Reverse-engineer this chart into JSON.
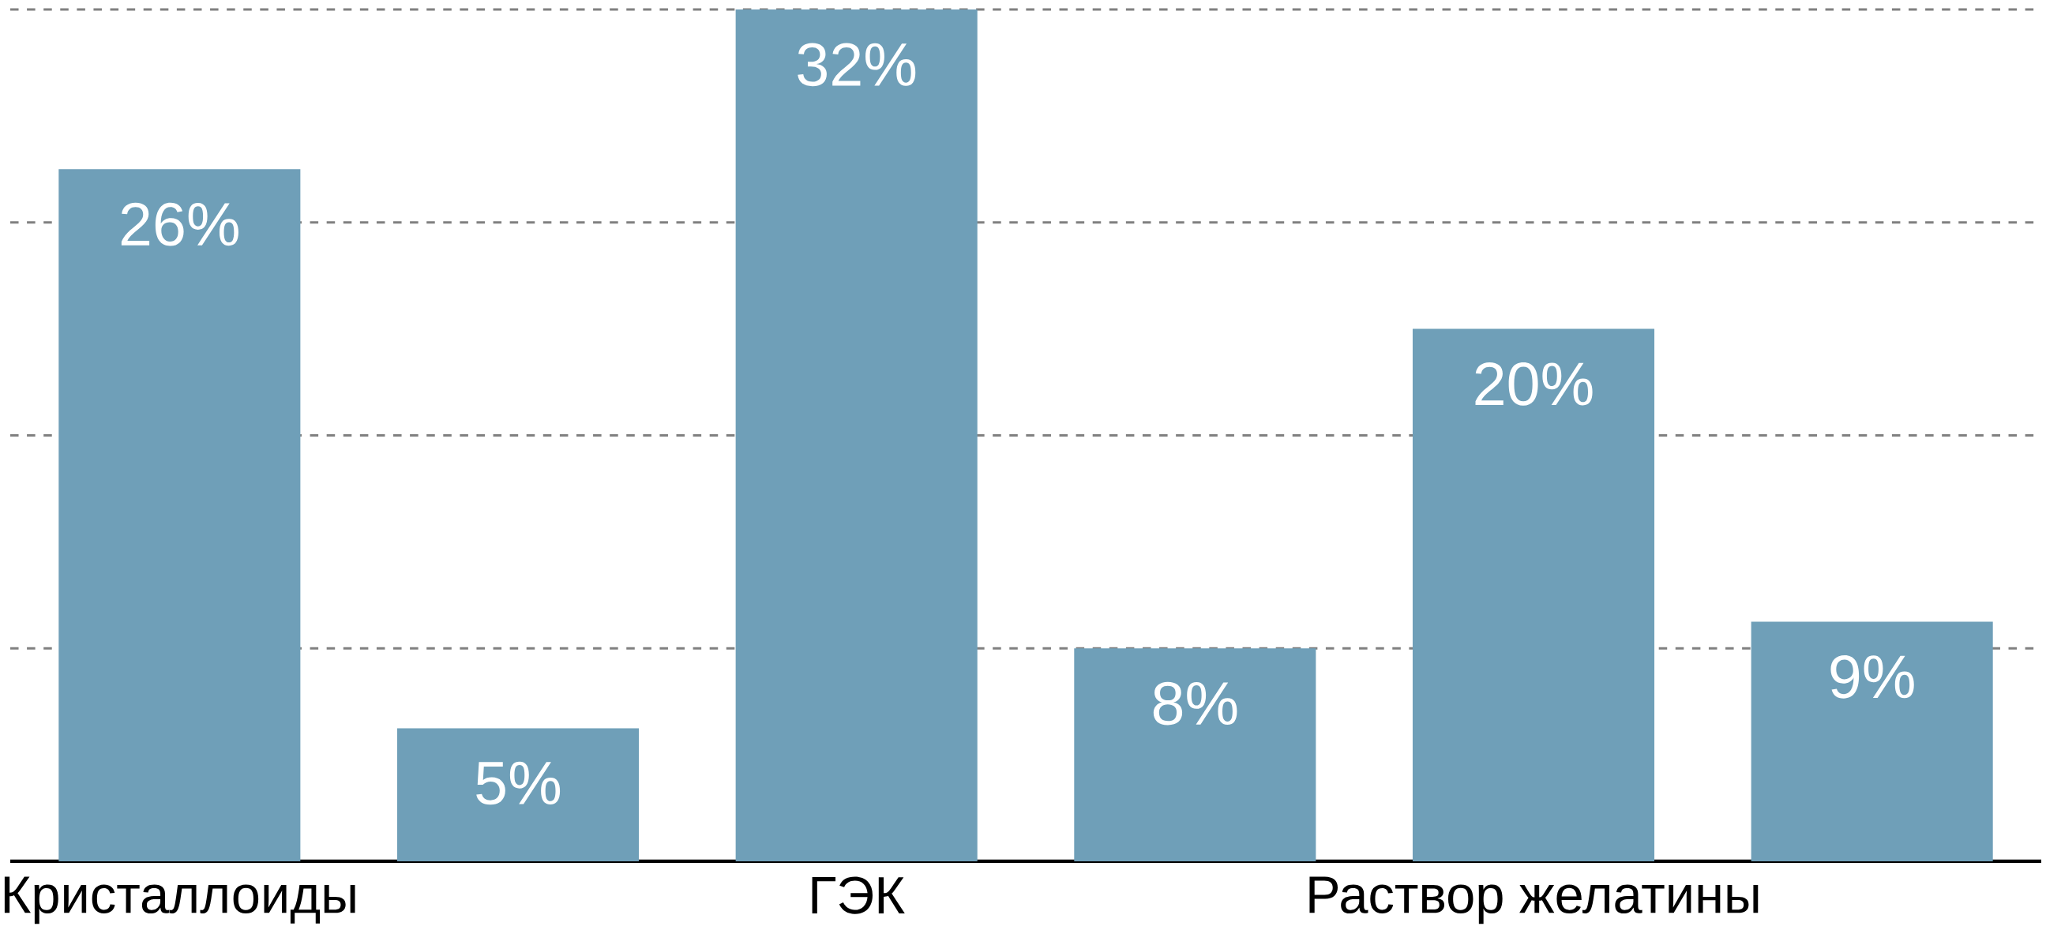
{
  "chart_data": {
    "type": "bar",
    "categories": [
      "Кристаллоиды",
      null,
      "ГЭК",
      null,
      "Раствор желатины",
      null
    ],
    "values": [
      26,
      5,
      32,
      8,
      20,
      9
    ],
    "value_labels": [
      "26%",
      "5%",
      "32%",
      "8%",
      "20%",
      "9%"
    ],
    "color": "#6f9fb8",
    "ylim": [
      0,
      32
    ],
    "yticks": [
      {
        "value": 8,
        "label": null
      },
      {
        "value": 16,
        "label": null
      },
      {
        "value": 24,
        "label": null
      },
      {
        "value": 32,
        "label": null
      }
    ],
    "grid": "y",
    "tick_labels": "x"
  }
}
